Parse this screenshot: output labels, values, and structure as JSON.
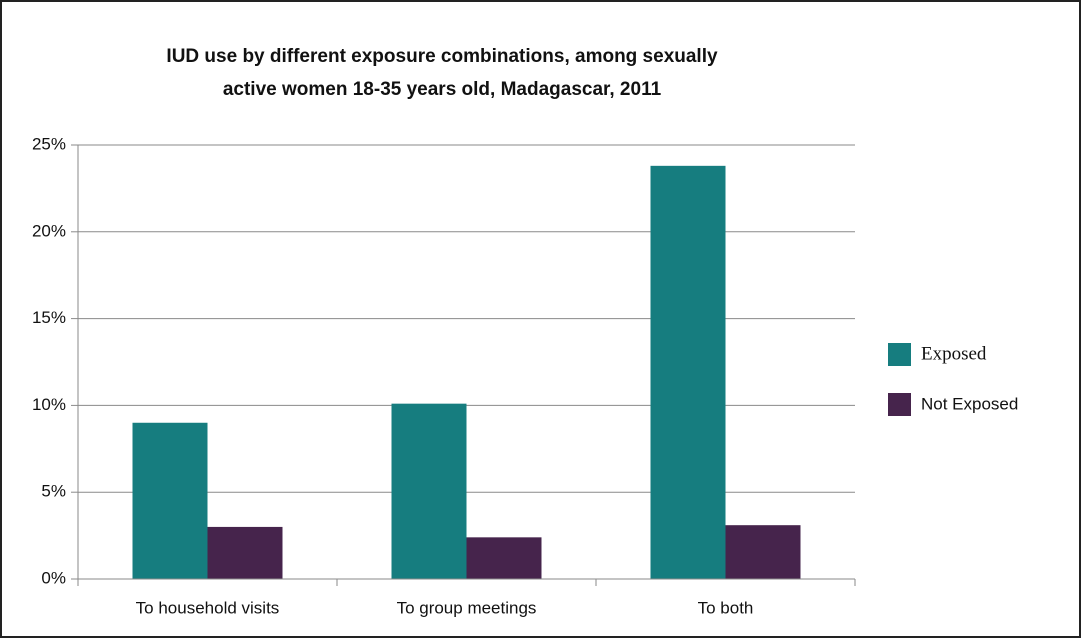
{
  "chart_data": {
    "type": "bar",
    "title": [
      "IUD use by different exposure combinations, among sexually",
      "active women 18-35 years old, Madagascar, 2011"
    ],
    "categories": [
      "To household visits",
      "To group meetings",
      "To both"
    ],
    "series": [
      {
        "name": "Exposed",
        "color": "#167d7f",
        "values": [
          9.0,
          10.1,
          23.8
        ]
      },
      {
        "name": "Not Exposed",
        "color": "#46244c",
        "values": [
          3.0,
          2.4,
          3.1
        ]
      }
    ],
    "ylim": [
      0,
      25
    ],
    "yticks": [
      {
        "value": 0,
        "label": "0%"
      },
      {
        "value": 5,
        "label": "5%"
      },
      {
        "value": 10,
        "label": "10%"
      },
      {
        "value": 15,
        "label": "15%"
      },
      {
        "value": 20,
        "label": "20%"
      },
      {
        "value": 25,
        "label": "25%"
      }
    ],
    "grid": true,
    "legend": "right"
  }
}
